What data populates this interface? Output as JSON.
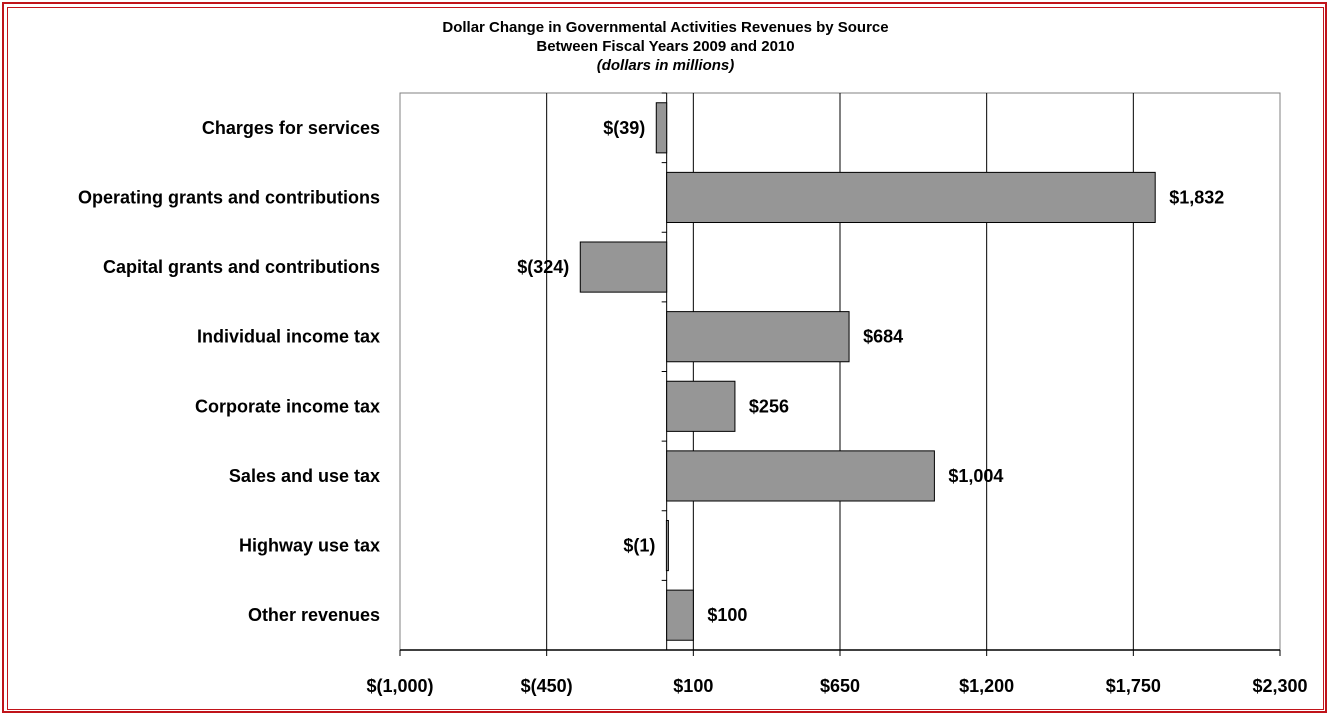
{
  "chart_data": {
    "type": "bar",
    "orientation": "horizontal",
    "title": "Dollar Change in Governmental Activities Revenues by Source",
    "subtitle": "Between Fiscal Years 2009 and 2010",
    "units_note": "(dollars in millions)",
    "categories": [
      "Charges for services",
      "Operating grants and contributions",
      "Capital grants and contributions",
      "Individual income tax",
      "Corporate income tax",
      "Sales and use tax",
      "Highway use tax",
      "Other revenues"
    ],
    "values": [
      -39,
      1832,
      -324,
      684,
      256,
      1004,
      -1,
      100
    ],
    "data_labels": [
      "$(39)",
      "$1,832",
      "$(324)",
      "$684",
      "$256",
      "$1,004",
      "$(1)",
      "$100"
    ],
    "xlim": [
      -1000,
      2300
    ],
    "x_ticks": [
      -1000,
      -450,
      100,
      650,
      1200,
      1750,
      2300
    ],
    "x_tick_labels": [
      "$(1,000)",
      "$(450)",
      "$100",
      "$650",
      "$1,200",
      "$1,750",
      "$2,300"
    ],
    "grid": "vertical",
    "legend": "none",
    "colors": {
      "bar": "#969696",
      "bar_stroke": "#000000",
      "gridline": "#000000",
      "frame": "#c0141a",
      "plot_border": "#808080"
    }
  }
}
